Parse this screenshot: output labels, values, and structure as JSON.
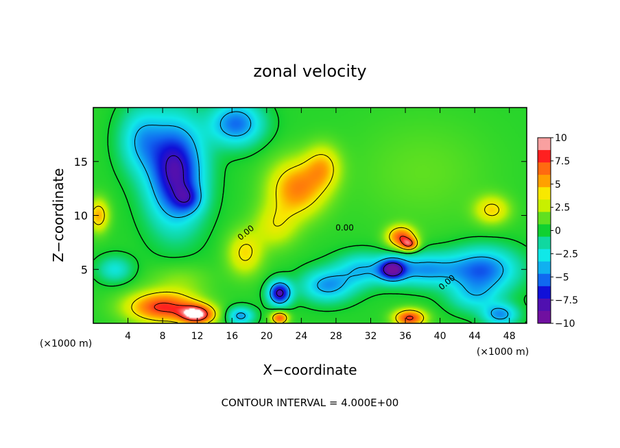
{
  "chart_data": {
    "type": "heatmap",
    "title": "zonal velocity",
    "xlabel": "X−coordinate",
    "ylabel": "Z−coordinate",
    "x_unit_left": "(×1000 m)",
    "x_unit_right": "(×1000 m)",
    "footer": "CONTOUR INTERVAL = 4.000E+00",
    "xlim": [
      0,
      50
    ],
    "ylim": [
      0,
      20
    ],
    "x_ticks": [
      4,
      8,
      12,
      16,
      20,
      24,
      28,
      32,
      36,
      40,
      44,
      48
    ],
    "y_ticks": [
      5,
      10,
      15
    ],
    "colorbar": {
      "range": [
        -10,
        10
      ],
      "ticks": [
        10,
        7.5,
        5,
        2.5,
        0,
        -2.5,
        -5,
        -7.5,
        -10
      ],
      "tick_labels": [
        "10",
        "7.5",
        "5",
        "2.5",
        "0",
        "−2.5",
        "−5",
        "−7.5",
        "−10"
      ],
      "colors": [
        "#f9a0a0",
        "#ff2020",
        "#ff6a10",
        "#ffa000",
        "#f8e800",
        "#c8f000",
        "#60e020",
        "#10d030",
        "#10d8a0",
        "#10e8e8",
        "#10b0f0",
        "#1068f0",
        "#1010d8",
        "#5010b0",
        "#7010a0"
      ]
    },
    "contour_labels": [
      "0.00",
      "0.00",
      "0.00"
    ],
    "features": [
      {
        "x": 9.5,
        "z": 14.0,
        "value": -9,
        "sx": 3.2,
        "sz": 4.8
      },
      {
        "x": 11.0,
        "z": 11.5,
        "value": -3,
        "sx": 1.6,
        "sz": 1.2
      },
      {
        "x": 16.5,
        "z": 18.5,
        "value": -6,
        "sx": 3.0,
        "sz": 2.0
      },
      {
        "x": 5.5,
        "z": 17.0,
        "value": -4,
        "sx": 2.5,
        "sz": 3.0
      },
      {
        "x": 0.6,
        "z": 10.0,
        "value": 5,
        "sx": 1.2,
        "sz": 1.5
      },
      {
        "x": 23.5,
        "z": 12.5,
        "value": 6,
        "sx": 3.2,
        "sz": 2.6
      },
      {
        "x": 26.5,
        "z": 14.5,
        "value": 4,
        "sx": 2.0,
        "sz": 2.0
      },
      {
        "x": 17.5,
        "z": 6.5,
        "value": 4,
        "sx": 2.0,
        "sz": 2.0
      },
      {
        "x": 21.0,
        "z": 9.0,
        "value": 3,
        "sx": 2.5,
        "sz": 2.0
      },
      {
        "x": 35.5,
        "z": 8.0,
        "value": 7,
        "sx": 1.6,
        "sz": 1.0
      },
      {
        "x": 36.5,
        "z": 7.3,
        "value": 6,
        "sx": 1.0,
        "sz": 0.6
      },
      {
        "x": 46.0,
        "z": 10.5,
        "value": 4,
        "sx": 2.0,
        "sz": 1.3
      },
      {
        "x": 38.0,
        "z": 14.0,
        "value": 1,
        "sx": 8.0,
        "sz": 5.0
      },
      {
        "x": 8.0,
        "z": 1.5,
        "value": 8,
        "sx": 4.0,
        "sz": 1.4
      },
      {
        "x": 12.0,
        "z": 0.8,
        "value": 9,
        "sx": 2.0,
        "sz": 0.9
      },
      {
        "x": 21.5,
        "z": 2.8,
        "value": -9,
        "sx": 1.3,
        "sz": 1.1
      },
      {
        "x": 21.5,
        "z": 0.5,
        "value": 7,
        "sx": 1.0,
        "sz": 0.6
      },
      {
        "x": 34.5,
        "z": 5.0,
        "value": -8,
        "sx": 1.5,
        "sz": 1.0
      },
      {
        "x": 36.5,
        "z": 0.5,
        "value": 8,
        "sx": 1.8,
        "sz": 0.8
      },
      {
        "x": 38.0,
        "z": 5.0,
        "value": -5,
        "sx": 4.0,
        "sz": 1.5
      },
      {
        "x": 27.0,
        "z": 3.5,
        "value": -5,
        "sx": 3.0,
        "sz": 1.5
      },
      {
        "x": 31.0,
        "z": 5.0,
        "value": -4,
        "sx": 3.0,
        "sz": 1.5
      },
      {
        "x": 45.0,
        "z": 5.0,
        "value": -6,
        "sx": 4.0,
        "sz": 2.0
      },
      {
        "x": 44.0,
        "z": 2.5,
        "value": -3,
        "sx": 3.0,
        "sz": 1.5
      },
      {
        "x": 47.0,
        "z": 0.8,
        "value": -5,
        "sx": 2.0,
        "sz": 1.0
      },
      {
        "x": 2.5,
        "z": 5.0,
        "value": -3,
        "sx": 2.0,
        "sz": 1.2
      },
      {
        "x": 17.0,
        "z": 0.7,
        "value": -5,
        "sx": 1.5,
        "sz": 0.8
      },
      {
        "x": 10.0,
        "z": 4.0,
        "value": 1.5,
        "sx": 3.5,
        "sz": 1.5
      }
    ]
  }
}
